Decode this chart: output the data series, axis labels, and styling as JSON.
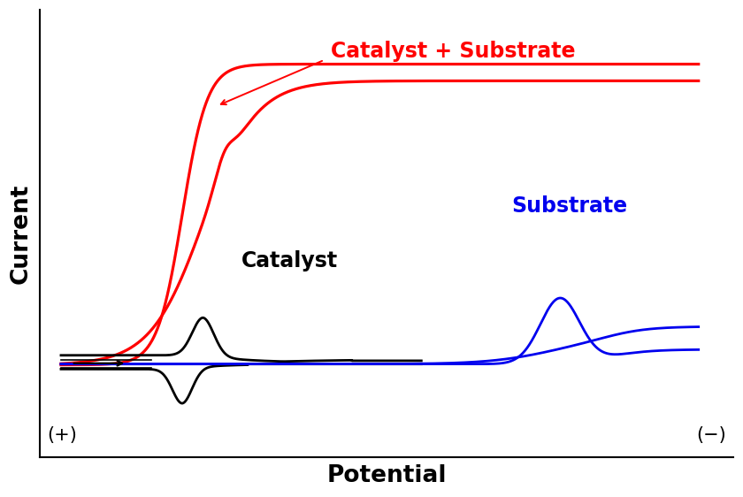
{
  "xlabel": "Potential",
  "ylabel": "Current",
  "xlabel_fontsize": 19,
  "ylabel_fontsize": 19,
  "label_plus": "(+)",
  "label_minus": "(−)",
  "label_fontsize": 15,
  "red_label": "Catalyst + Substrate",
  "black_label": "Catalyst",
  "blue_label": "Substrate",
  "annotation_fontsize": 17,
  "red_color": "#ff0000",
  "black_color": "#000000",
  "blue_color": "#0000ee",
  "linewidth": 2.0,
  "xlim": [
    0,
    10
  ],
  "ylim": [
    -2.2,
    8.5
  ]
}
